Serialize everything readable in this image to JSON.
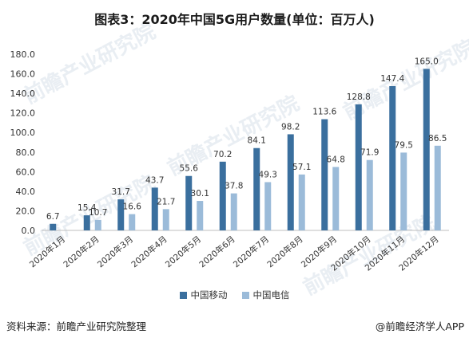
{
  "title": "图表3：2020年中国5G用户数量(单位：百万人)",
  "source": "资料来源：前瞻产业研究院整理",
  "credit": "@前瞻经济学人APP",
  "watermark": "前瞻产业研究院",
  "chart_data": {
    "type": "bar",
    "title": "图表3：2020年中国5G用户数量(单位：百万人)",
    "xlabel": "",
    "ylabel": "",
    "ylim": [
      0,
      180
    ],
    "yticks": [
      "0.0",
      "20.0",
      "40.0",
      "60.0",
      "80.0",
      "100.0",
      "120.0",
      "140.0",
      "160.0",
      "180.0"
    ],
    "grid": false,
    "legend_position": "bottom",
    "categories": [
      "2020年1月",
      "2020年2月",
      "2020年3月",
      "2020年4月",
      "2020年5月",
      "2020年6月",
      "2020年7月",
      "2020年8月",
      "2020年9月",
      "2020年10月",
      "2020年11月",
      "2020年12月"
    ],
    "series": [
      {
        "name": "中国移动",
        "color": "#3a6f9e",
        "values": [
          6.7,
          15.4,
          31.7,
          43.7,
          55.6,
          70.2,
          84.1,
          98.2,
          113.6,
          128.8,
          147.4,
          165.0
        ],
        "labels": [
          "6.7",
          "15.4",
          "31.7",
          "43.7",
          "55.6",
          "70.2",
          "84.1",
          "98.2",
          "113.6",
          "128.8",
          "147.4",
          "165.0"
        ]
      },
      {
        "name": "中国电信",
        "color": "#9bbbd9",
        "values": [
          null,
          10.7,
          16.6,
          21.7,
          30.1,
          37.8,
          49.3,
          57.1,
          64.8,
          71.9,
          79.5,
          86.5
        ],
        "labels": [
          null,
          "10.7",
          "16.6",
          "21.7",
          "30.1",
          "37.8",
          "49.3",
          "57.1",
          "64.8",
          "71.9",
          "79.5",
          "86.5"
        ]
      }
    ]
  }
}
